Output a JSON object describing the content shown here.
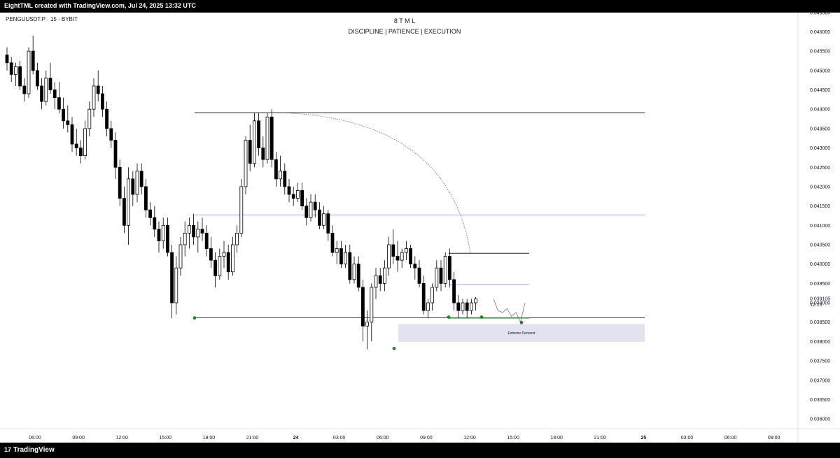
{
  "header": {
    "caption": "EightTML created with TradingView.com, Jul 24, 2025 13:32 UTC"
  },
  "footer": {
    "brand": "TradingView"
  },
  "chart_data": {
    "type": "candlestick",
    "symbol_label": "PENGUUSDT.P · 15 · BYBIT",
    "title": "8 T M L",
    "subtitle": "DISCIPLINE | PATIENCE | EXECUTION",
    "time_labels": [
      "06:00",
      "09:00",
      "12:00",
      "15:00",
      "18:00",
      "21:00",
      "24",
      "03:00",
      "06:00",
      "09:00",
      "12:00",
      "15:00",
      "18:00",
      "21:00",
      "25",
      "03:00",
      "06:00",
      "09:00"
    ],
    "price_ticks": [
      "0.046500",
      "0.046000",
      "0.045500",
      "0.045000",
      "0.044500",
      "0.044000",
      "0.043500",
      "0.043000",
      "0.042500",
      "0.042000",
      "0.041500",
      "0.041000",
      "0.040500",
      "0.040000",
      "0.039500",
      "0.039000",
      "0.038500",
      "0.038000",
      "0.037500",
      "0.037000",
      "0.036500",
      "0.036000"
    ],
    "ylim": [
      0.03575,
      0.04655
    ],
    "current_price": "0.039105",
    "countdown": "12:15",
    "annotations": {
      "zone_label": "Extreme Demand",
      "levels": [
        0.04391,
        0.04127,
        0.03861
      ],
      "local_levels": [
        0.04028,
        0.03947
      ],
      "zone": [
        0.03799,
        0.03845
      ]
    },
    "colors": {
      "up": "#ffffff",
      "down": "#000000",
      "level": "#000000",
      "mid_level": "#b39ddb",
      "zone": "#e3e3f0",
      "marker": "#2e7d32"
    },
    "candles": [
      [
        0.0454,
        0.0456,
        0.045,
        0.0452
      ],
      [
        0.0452,
        0.04535,
        0.0447,
        0.0449
      ],
      [
        0.0449,
        0.0452,
        0.0446,
        0.0451
      ],
      [
        0.0451,
        0.04525,
        0.0445,
        0.0446
      ],
      [
        0.0446,
        0.0448,
        0.0442,
        0.0444
      ],
      [
        0.0444,
        0.0456,
        0.0443,
        0.0455
      ],
      [
        0.0455,
        0.0459,
        0.0449,
        0.045
      ],
      [
        0.045,
        0.0452,
        0.0445,
        0.0446
      ],
      [
        0.0446,
        0.0448,
        0.044,
        0.0442
      ],
      [
        0.0442,
        0.045,
        0.0441,
        0.0448
      ],
      [
        0.0448,
        0.0452,
        0.0444,
        0.0445
      ],
      [
        0.0445,
        0.0447,
        0.044,
        0.0443
      ],
      [
        0.0443,
        0.0447,
        0.0439,
        0.044
      ],
      [
        0.044,
        0.0443,
        0.0435,
        0.0437
      ],
      [
        0.0437,
        0.0441,
        0.0434,
        0.0436
      ],
      [
        0.0436,
        0.0438,
        0.0429,
        0.0431
      ],
      [
        0.0431,
        0.0435,
        0.0428,
        0.043
      ],
      [
        0.043,
        0.0432,
        0.0426,
        0.0428
      ],
      [
        0.0428,
        0.0437,
        0.0427,
        0.0435
      ],
      [
        0.0435,
        0.0442,
        0.0433,
        0.044
      ],
      [
        0.044,
        0.0448,
        0.0438,
        0.0446
      ],
      [
        0.0446,
        0.045,
        0.0442,
        0.0444
      ],
      [
        0.0444,
        0.0446,
        0.0438,
        0.044
      ],
      [
        0.044,
        0.0442,
        0.0433,
        0.0435
      ],
      [
        0.0435,
        0.0437,
        0.043,
        0.0432
      ],
      [
        0.0432,
        0.0434,
        0.0422,
        0.0425
      ],
      [
        0.0425,
        0.0427,
        0.0415,
        0.0417
      ],
      [
        0.0417,
        0.042,
        0.0408,
        0.041
      ],
      [
        0.041,
        0.0425,
        0.0405,
        0.0422
      ],
      [
        0.0422,
        0.0424,
        0.0415,
        0.0418
      ],
      [
        0.0418,
        0.0426,
        0.0416,
        0.0424
      ],
      [
        0.0424,
        0.0426,
        0.0418,
        0.042
      ],
      [
        0.042,
        0.0422,
        0.0412,
        0.0414
      ],
      [
        0.0414,
        0.0416,
        0.041,
        0.0412
      ],
      [
        0.0412,
        0.0415,
        0.0407,
        0.0409
      ],
      [
        0.0409,
        0.0411,
        0.0403,
        0.0406
      ],
      [
        0.0406,
        0.0412,
        0.0404,
        0.041
      ],
      [
        0.041,
        0.0412,
        0.0402,
        0.0403
      ],
      [
        0.0403,
        0.0405,
        0.0386,
        0.039
      ],
      [
        0.039,
        0.0402,
        0.0387,
        0.0399
      ],
      [
        0.0399,
        0.0407,
        0.0397,
        0.0405
      ],
      [
        0.0405,
        0.0411,
        0.0402,
        0.0408
      ],
      [
        0.0408,
        0.0412,
        0.0404,
        0.041
      ],
      [
        0.041,
        0.0413,
        0.0405,
        0.0407
      ],
      [
        0.0407,
        0.0411,
        0.0403,
        0.0409
      ],
      [
        0.0409,
        0.0412,
        0.0406,
        0.0408
      ],
      [
        0.0408,
        0.041,
        0.0402,
        0.0404
      ],
      [
        0.0404,
        0.0407,
        0.0399,
        0.0401
      ],
      [
        0.0401,
        0.0403,
        0.0394,
        0.0397
      ],
      [
        0.0397,
        0.0404,
        0.0396,
        0.0402
      ],
      [
        0.0402,
        0.0406,
        0.0399,
        0.0403
      ],
      [
        0.0403,
        0.0405,
        0.0396,
        0.0398
      ],
      [
        0.0398,
        0.0407,
        0.0397,
        0.0405
      ],
      [
        0.0405,
        0.041,
        0.0403,
        0.0408
      ],
      [
        0.0408,
        0.0422,
        0.0407,
        0.042
      ],
      [
        0.042,
        0.0433,
        0.0418,
        0.0432
      ],
      [
        0.0432,
        0.0436,
        0.0424,
        0.0426
      ],
      [
        0.0426,
        0.0439,
        0.0425,
        0.0437
      ],
      [
        0.0437,
        0.0439,
        0.0428,
        0.043
      ],
      [
        0.043,
        0.0433,
        0.0425,
        0.0427
      ],
      [
        0.0427,
        0.0439,
        0.0426,
        0.0438
      ],
      [
        0.0438,
        0.044,
        0.0425,
        0.0427
      ],
      [
        0.0427,
        0.0429,
        0.042,
        0.0422
      ],
      [
        0.0422,
        0.0428,
        0.042,
        0.0424
      ],
      [
        0.0424,
        0.0426,
        0.0418,
        0.042
      ],
      [
        0.042,
        0.0422,
        0.0416,
        0.0418
      ],
      [
        0.0418,
        0.042,
        0.0415,
        0.0417
      ],
      [
        0.0417,
        0.0421,
        0.0416,
        0.0419
      ],
      [
        0.0419,
        0.0421,
        0.0414,
        0.0415
      ],
      [
        0.0415,
        0.0417,
        0.041,
        0.0412
      ],
      [
        0.0412,
        0.0418,
        0.0411,
        0.0416
      ],
      [
        0.0416,
        0.0418,
        0.0412,
        0.0414
      ],
      [
        0.0414,
        0.0416,
        0.0409,
        0.041
      ],
      [
        0.041,
        0.0415,
        0.0409,
        0.0413
      ],
      [
        0.0413,
        0.0414,
        0.0406,
        0.0408
      ],
      [
        0.0408,
        0.041,
        0.0402,
        0.0403
      ],
      [
        0.0403,
        0.0406,
        0.04,
        0.0404
      ],
      [
        0.0404,
        0.0406,
        0.0399,
        0.04
      ],
      [
        0.04,
        0.0405,
        0.0399,
        0.0403
      ],
      [
        0.0403,
        0.0405,
        0.0395,
        0.0396
      ],
      [
        0.0396,
        0.0402,
        0.0395,
        0.04
      ],
      [
        0.04,
        0.0402,
        0.0393,
        0.0394
      ],
      [
        0.0394,
        0.0396,
        0.038,
        0.0384
      ],
      [
        0.0384,
        0.0388,
        0.0378,
        0.0385
      ],
      [
        0.0385,
        0.0395,
        0.038,
        0.0394
      ],
      [
        0.0394,
        0.0399,
        0.0391,
        0.0397
      ],
      [
        0.0397,
        0.0399,
        0.0393,
        0.0395
      ],
      [
        0.0395,
        0.0401,
        0.0393,
        0.0399
      ],
      [
        0.0399,
        0.0407,
        0.0397,
        0.0405
      ],
      [
        0.0405,
        0.0409,
        0.04,
        0.0402
      ],
      [
        0.0402,
        0.0406,
        0.0398,
        0.0401
      ],
      [
        0.0401,
        0.0404,
        0.0399,
        0.0403
      ],
      [
        0.0403,
        0.0406,
        0.0401,
        0.0404
      ],
      [
        0.0404,
        0.0405,
        0.0399,
        0.04
      ],
      [
        0.04,
        0.0402,
        0.0396,
        0.0399
      ],
      [
        0.0399,
        0.0401,
        0.0394,
        0.0395
      ],
      [
        0.0395,
        0.0397,
        0.0387,
        0.0388
      ],
      [
        0.0388,
        0.0391,
        0.0386,
        0.039
      ],
      [
        0.039,
        0.0395,
        0.0388,
        0.0394
      ],
      [
        0.0394,
        0.0401,
        0.0393,
        0.0399
      ],
      [
        0.0399,
        0.0401,
        0.0393,
        0.0395
      ],
      [
        0.0395,
        0.0403,
        0.0394,
        0.0402
      ],
      [
        0.0402,
        0.0404,
        0.0394,
        0.0396
      ],
      [
        0.0396,
        0.0398,
        0.0388,
        0.039
      ],
      [
        0.039,
        0.0392,
        0.0386,
        0.0388
      ],
      [
        0.0388,
        0.0391,
        0.0387,
        0.039
      ],
      [
        0.039,
        0.0391,
        0.0386,
        0.0388
      ],
      [
        0.0388,
        0.0391,
        0.0387,
        0.039
      ],
      [
        0.039,
        0.03915,
        0.0388,
        0.0391
      ]
    ],
    "projection": [
      0.0391,
      0.0388,
      0.03875,
      0.03885,
      0.03865,
      0.03875,
      0.0385,
      0.039
    ]
  }
}
